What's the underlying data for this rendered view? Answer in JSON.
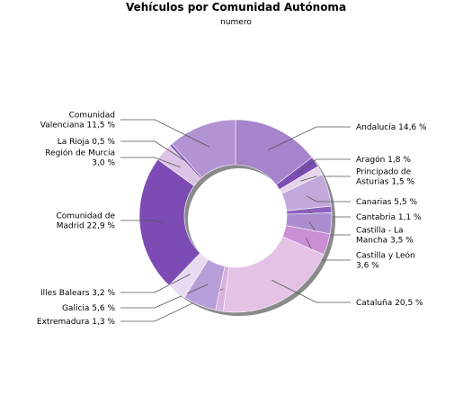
{
  "chart_data": {
    "type": "pie",
    "donut": true,
    "title": "Vehículos por Comunidad Autónoma",
    "subtitle": "numero",
    "unit": "%",
    "slices": [
      {
        "label": "Andalucía 14,6 %",
        "value": 14.6,
        "color": "#a584cc"
      },
      {
        "label": "Aragón 1,8 %",
        "value": 1.8,
        "color": "#7a4cb4"
      },
      {
        "label": "Principado de Asturias 1,5 %",
        "value": 1.5,
        "color": "#e6d4ea"
      },
      {
        "label": "Canarias 5,5 %",
        "value": 5.5,
        "color": "#c3a8dc"
      },
      {
        "label": "Cantabria 1,1 %",
        "value": 1.1,
        "color": "#8e62c0"
      },
      {
        "label": "Castilla - La Mancha 3,5 %",
        "value": 3.5,
        "color": "#ac8ed0"
      },
      {
        "label": "Castilla y León 3,6 %",
        "value": 3.6,
        "color": "#c98ed4"
      },
      {
        "label": "Cataluña 20,5 %",
        "value": 20.5,
        "color": "#e4c2e6"
      },
      {
        "label": "Extremadura 1,3 %",
        "value": 1.3,
        "color": "#d6b2de"
      },
      {
        "label": "Galicia 5,6 %",
        "value": 5.6,
        "color": "#b89ed8"
      },
      {
        "label": "Illes Balears 3,2 %",
        "value": 3.2,
        "color": "#e8daf0"
      },
      {
        "label": "Comunidad de Madrid 22,9 %",
        "value": 22.9,
        "color": "#7c4cb4"
      },
      {
        "label": "Región de Murcia 3,0 %",
        "value": 3.0,
        "color": "#dcc4e6"
      },
      {
        "label": "La Rioja 0,5 %",
        "value": 0.5,
        "color": "#8a62bc"
      },
      {
        "label": "Comunidad Valenciana 11,5 %",
        "value": 11.5,
        "color": "#b294d2"
      }
    ]
  }
}
